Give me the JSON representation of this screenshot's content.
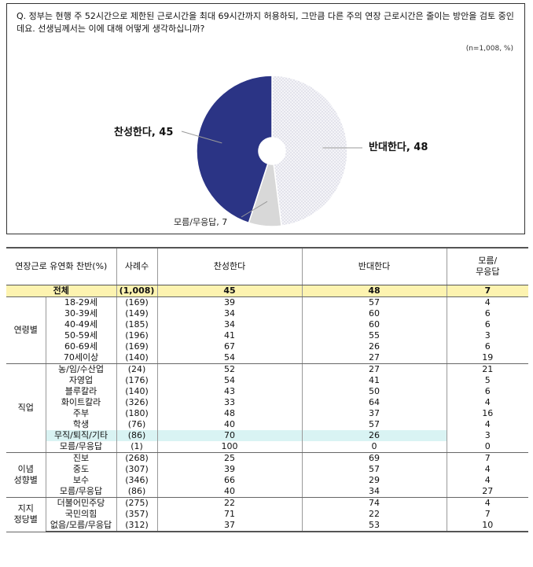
{
  "question": "Q. 정부는 현행 주 52시간으로 제한된 근로시간을 최대 69시간까지 허용하되, 그만큼 다른 주의 연장 근로시간은 줄이는 방안을 검토 중인데요. 선생님께서는 이에 대해 어떻게 생각하십니까?",
  "sample_note": "(n=1,008, %)",
  "colors": {
    "favor": "#2b3485",
    "oppose": "#ecedf4",
    "unknown": "#d8d8d8",
    "total_row": "#fdf3b0",
    "highlight": "#d9f3f3"
  },
  "chart_data": {
    "type": "pie",
    "donut": true,
    "slices": [
      {
        "label": "찬성한다",
        "value": 45,
        "display": "찬성한다, 45"
      },
      {
        "label": "반대한다",
        "value": 48,
        "display": "반대한다, 48"
      },
      {
        "label": "모름/무응답",
        "value": 7,
        "display": "모름/무응답, 7"
      }
    ]
  },
  "table": {
    "headers": [
      "연장근로 유연화 찬반(%)",
      "사례수",
      "찬성한다",
      "반대한다",
      "모름/\n무응답"
    ],
    "total": {
      "label": "전체",
      "n": "(1,008)",
      "favor": "45",
      "oppose": "48",
      "unknown": "7"
    },
    "groups": [
      {
        "name": "연령별",
        "rows": [
          {
            "label": "18-29세",
            "n": "(169)",
            "favor": "39",
            "oppose": "57",
            "unknown": "4"
          },
          {
            "label": "30-39세",
            "n": "(149)",
            "favor": "34",
            "oppose": "60",
            "unknown": "6"
          },
          {
            "label": "40-49세",
            "n": "(185)",
            "favor": "34",
            "oppose": "60",
            "unknown": "6"
          },
          {
            "label": "50-59세",
            "n": "(196)",
            "favor": "41",
            "oppose": "55",
            "unknown": "3"
          },
          {
            "label": "60-69세",
            "n": "(169)",
            "favor": "67",
            "oppose": "26",
            "unknown": "6"
          },
          {
            "label": "70세이상",
            "n": "(140)",
            "favor": "54",
            "oppose": "27",
            "unknown": "19"
          }
        ]
      },
      {
        "name": "직업",
        "rows": [
          {
            "label": "농/임/수산업",
            "n": "(24)",
            "favor": "52",
            "oppose": "27",
            "unknown": "21"
          },
          {
            "label": "자영업",
            "n": "(176)",
            "favor": "54",
            "oppose": "41",
            "unknown": "5"
          },
          {
            "label": "블루칼라",
            "n": "(140)",
            "favor": "43",
            "oppose": "50",
            "unknown": "6"
          },
          {
            "label": "화이트칼라",
            "n": "(326)",
            "favor": "33",
            "oppose": "64",
            "unknown": "4"
          },
          {
            "label": "주부",
            "n": "(180)",
            "favor": "48",
            "oppose": "37",
            "unknown": "16"
          },
          {
            "label": "학생",
            "n": "(76)",
            "favor": "40",
            "oppose": "57",
            "unknown": "4"
          },
          {
            "label": "무직/퇴직/기타",
            "n": "(86)",
            "favor": "70",
            "oppose": "26",
            "unknown": "3",
            "highlight": true
          },
          {
            "label": "모름/무응답",
            "n": "(1)",
            "favor": "100",
            "oppose": "0",
            "unknown": "0"
          }
        ]
      },
      {
        "name": "이념\n성향별",
        "rows": [
          {
            "label": "진보",
            "n": "(268)",
            "favor": "25",
            "oppose": "69",
            "unknown": "7"
          },
          {
            "label": "중도",
            "n": "(307)",
            "favor": "39",
            "oppose": "57",
            "unknown": "4"
          },
          {
            "label": "보수",
            "n": "(346)",
            "favor": "66",
            "oppose": "29",
            "unknown": "4"
          },
          {
            "label": "모름/무응답",
            "n": "(86)",
            "favor": "40",
            "oppose": "34",
            "unknown": "27"
          }
        ]
      },
      {
        "name": "지지\n정당별",
        "rows": [
          {
            "label": "더불어민주당",
            "n": "(275)",
            "favor": "22",
            "oppose": "74",
            "unknown": "4"
          },
          {
            "label": "국민의힘",
            "n": "(357)",
            "favor": "71",
            "oppose": "22",
            "unknown": "7"
          },
          {
            "label": "없음/모름/무응답",
            "n": "(312)",
            "favor": "37",
            "oppose": "53",
            "unknown": "10"
          }
        ]
      }
    ]
  }
}
